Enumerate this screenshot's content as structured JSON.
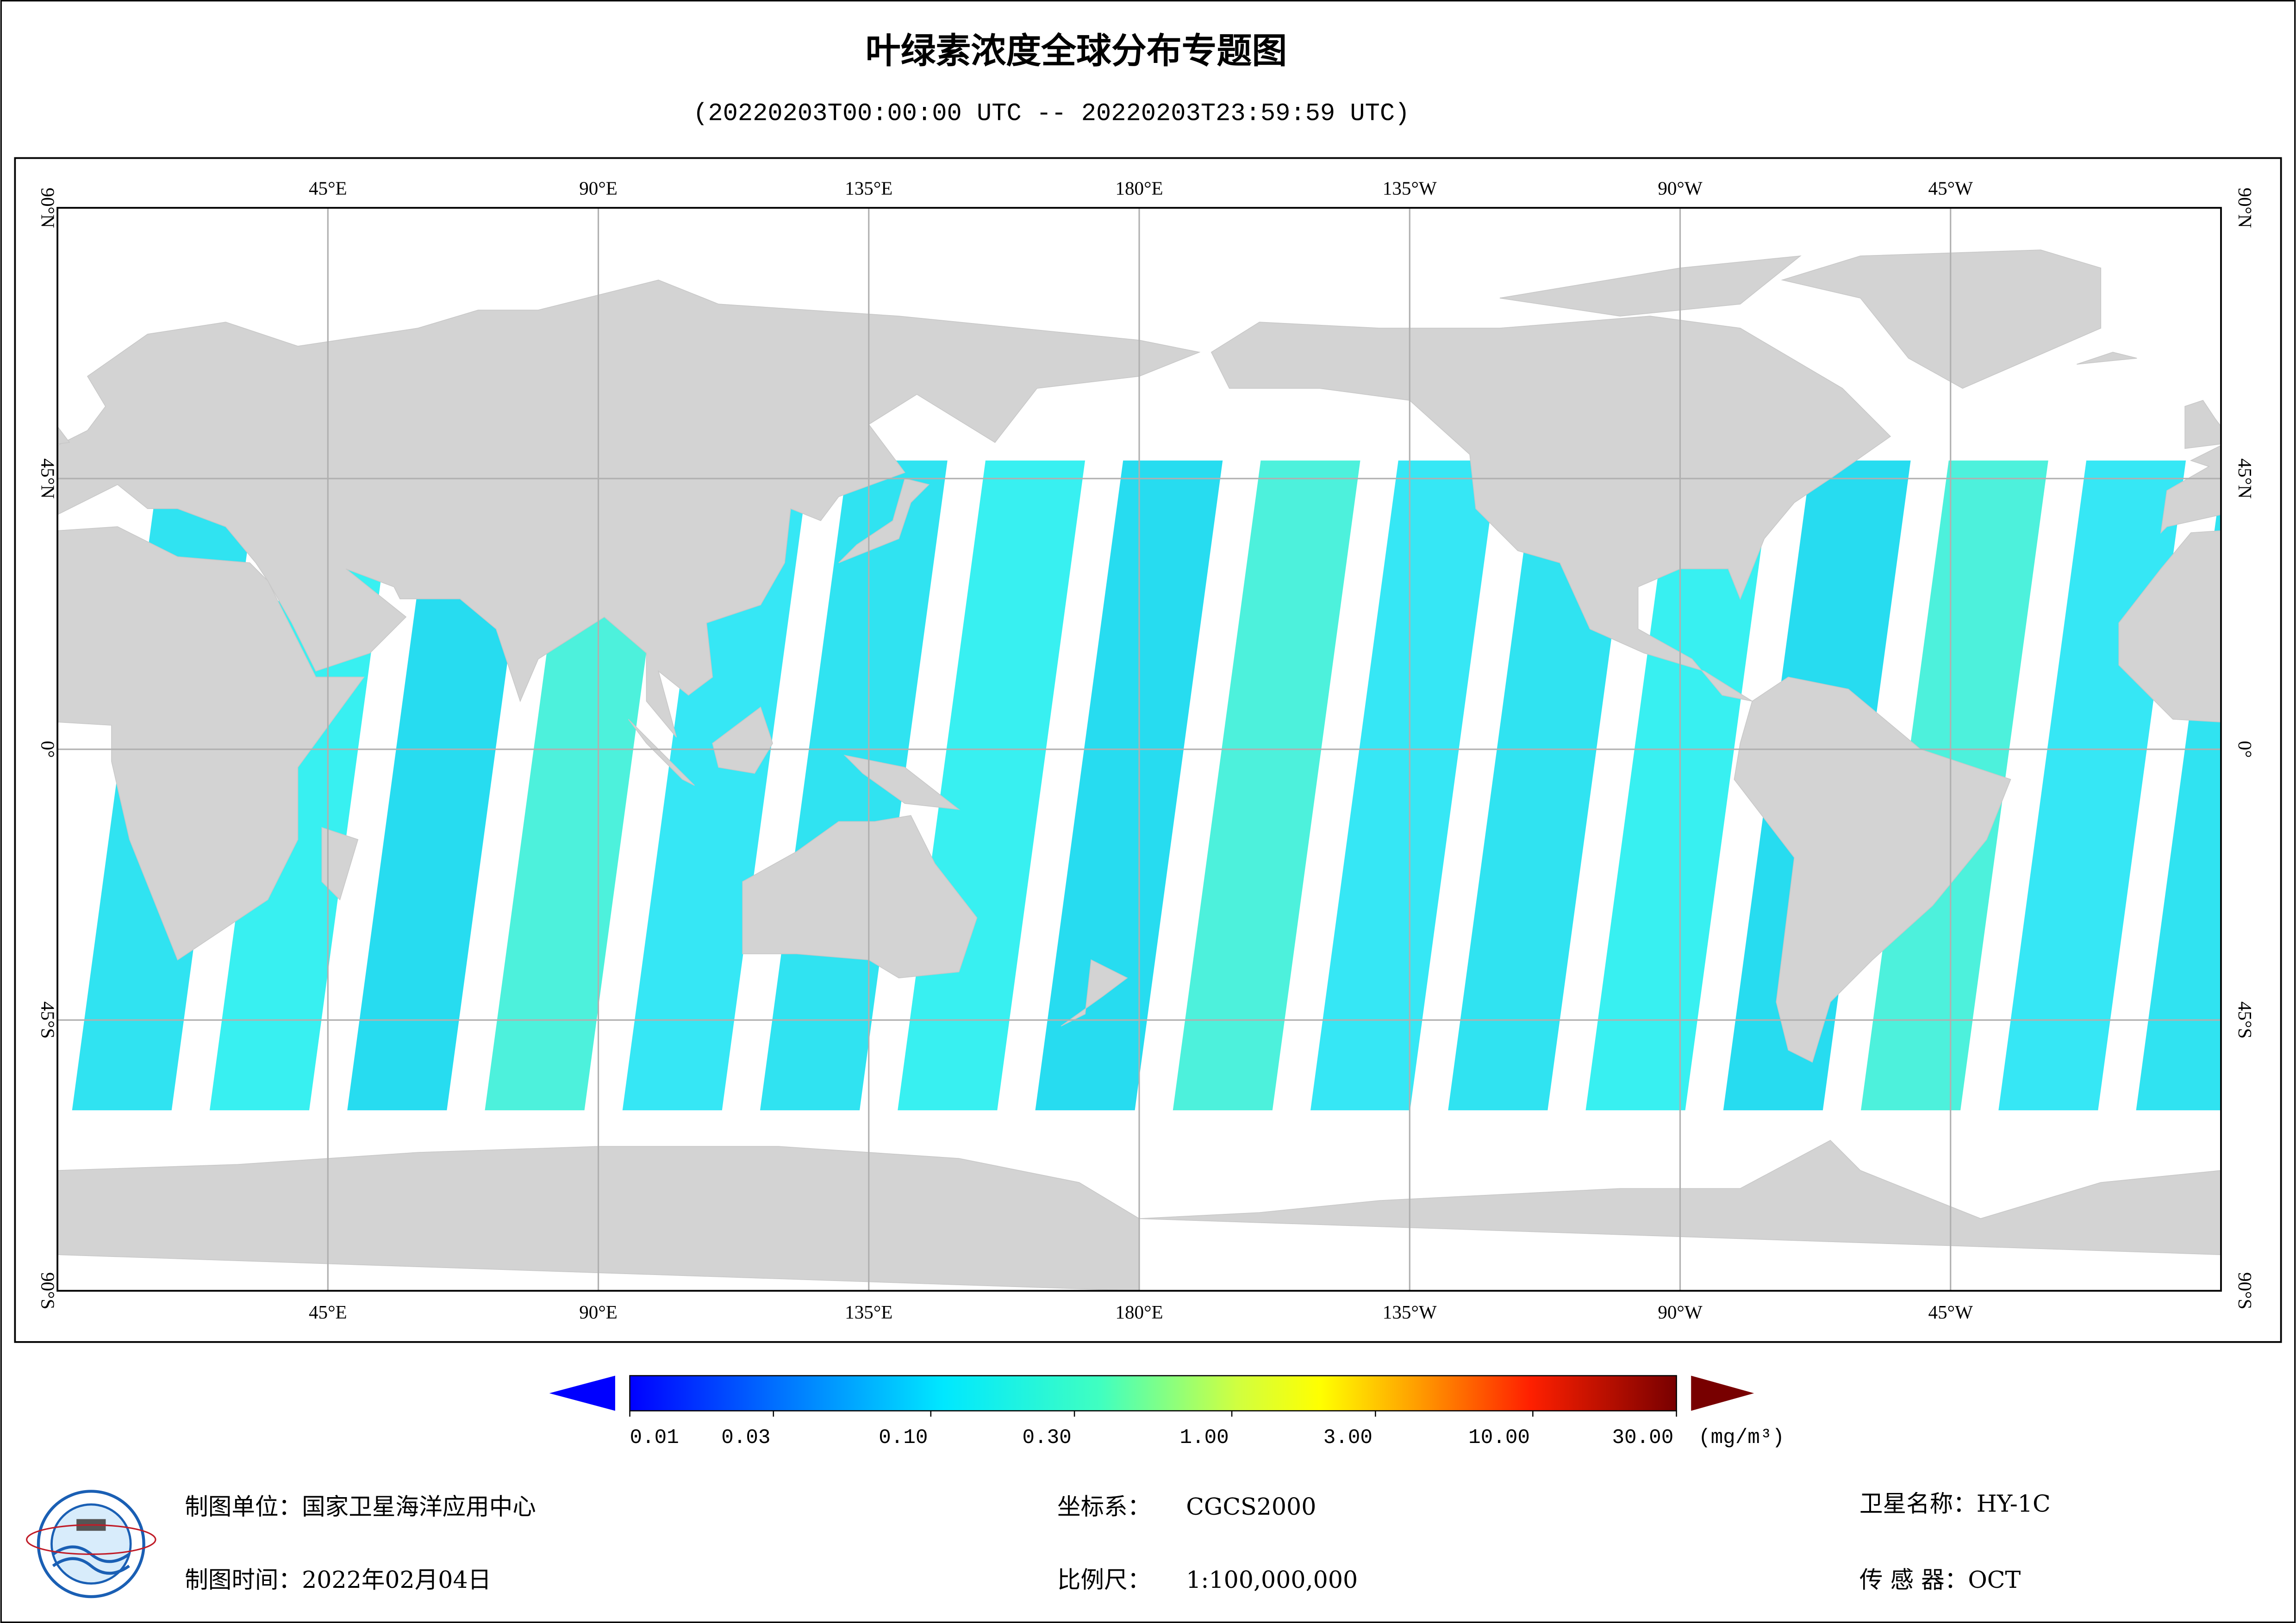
{
  "header": {
    "title": "叶绿素浓度全球分布专题图",
    "subtitle": "(20220203T00:00:00 UTC -- 20220203T23:59:59 UTC)"
  },
  "map": {
    "lon_labels": [
      "45°E",
      "90°E",
      "135°E",
      "180°E",
      "135°W",
      "90°W",
      "45°W"
    ],
    "lat_labels": [
      "90°N",
      "45°N",
      "0°",
      "45°S",
      "90°S"
    ]
  },
  "colorbar": {
    "ticks": [
      {
        "value": 0.01,
        "label": "0.01"
      },
      {
        "value": 0.03,
        "label": "0.03"
      },
      {
        "value": 0.1,
        "label": "0.10"
      },
      {
        "value": 0.3,
        "label": "0.30"
      },
      {
        "value": 1,
        "label": "1.00"
      },
      {
        "value": 3,
        "label": "3.00"
      },
      {
        "value": 10,
        "label": "10.00"
      },
      {
        "value": 30,
        "label": "30.00"
      }
    ],
    "unit": "(mg/m³)"
  },
  "footer": {
    "unit": "制图单位：国家卫星海洋应用中心",
    "date": "制图时间：2022年02月04日",
    "crs_label": "坐标系：",
    "crs": "CGCS2000",
    "scale_label": "比例尺：",
    "scale": "1:100,000,000",
    "satellite": "卫星名称：HY-1C",
    "sensor": "传 感 器：OCT"
  }
}
